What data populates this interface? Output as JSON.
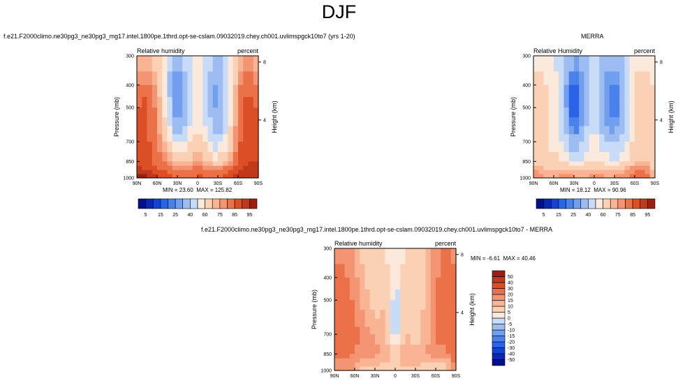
{
  "page": {
    "title": "DJF"
  },
  "levels": {
    "abs": [
      5,
      10,
      15,
      20,
      25,
      30,
      40,
      50,
      60,
      70,
      75,
      80,
      85,
      90,
      95
    ],
    "abs_labels": [
      "5",
      "15",
      "25",
      "40",
      "60",
      "75",
      "85",
      "95"
    ],
    "diff": [
      -50,
      -40,
      -30,
      -20,
      -15,
      -10,
      -5,
      0,
      5,
      10,
      15,
      20,
      30,
      40,
      50
    ]
  },
  "colors": {
    "abs_fill": [
      "#04108a",
      "#0b27b8",
      "#1441d6",
      "#2a62e8",
      "#4a82ec",
      "#719fee",
      "#9dbdf2",
      "#c9dcf7",
      "#fbe9dc",
      "#fbd1b6",
      "#f8b493",
      "#f39473",
      "#eb7149",
      "#dc4f26",
      "#c0391b",
      "#9c1d12"
    ],
    "diff_fill": [
      "#04108a",
      "#0b27b8",
      "#1441d6",
      "#2a62e8",
      "#4a82ec",
      "#719fee",
      "#9dbdf2",
      "#c9dcf7",
      "#fbe9dc",
      "#fbd1b6",
      "#f8b493",
      "#f39473",
      "#eb7149",
      "#dc4f26",
      "#c0391b",
      "#9c1d12"
    ]
  },
  "chart_data": [
    {
      "type": "heatmap",
      "title": "f.e21.F2000climo.ne30pg3_ne30pg3_mg17.intel.1800pe.1thrd.opt-se-cslam.09032019.chey.ch001.uvlimspgck10to7 (yrs 1-20)",
      "left_label": "Relative humidity",
      "right_label": "percent",
      "xlabel": "",
      "ylabel": "Pressure (mb)",
      "y2label": "Height (km)",
      "x_ticks": [
        "90N",
        "60N",
        "30N",
        "0",
        "30S",
        "60S",
        "90S"
      ],
      "y_ticks": [
        "300",
        "400",
        "500",
        "700",
        "850",
        "1000"
      ],
      "y2_ticks": [
        "8",
        "4"
      ],
      "x": [
        90,
        75,
        60,
        45,
        30,
        15,
        0,
        -15,
        -30,
        -45,
        -60,
        -75,
        -90
      ],
      "y": [
        300,
        400,
        500,
        600,
        700,
        850,
        925,
        1000
      ],
      "z": [
        [
          65,
          70,
          65,
          45,
          35,
          45,
          55,
          45,
          40,
          50,
          70,
          75,
          70
        ],
        [
          82,
          84,
          75,
          45,
          20,
          40,
          55,
          40,
          25,
          45,
          80,
          85,
          80
        ],
        [
          85,
          86,
          78,
          50,
          20,
          40,
          55,
          40,
          25,
          45,
          82,
          88,
          85
        ],
        [
          86,
          86,
          80,
          55,
          30,
          45,
          62,
          45,
          30,
          50,
          82,
          88,
          88
        ],
        [
          86,
          86,
          82,
          65,
          45,
          55,
          68,
          55,
          40,
          60,
          84,
          88,
          90
        ],
        [
          88,
          86,
          82,
          78,
          68,
          70,
          76,
          70,
          62,
          75,
          86,
          90,
          90
        ],
        [
          92,
          90,
          86,
          84,
          82,
          80,
          84,
          82,
          80,
          84,
          90,
          92,
          90
        ],
        [
          98,
          96,
          90,
          86,
          84,
          82,
          86,
          84,
          84,
          88,
          92,
          94,
          92
        ]
      ],
      "min_label": "MIN = 23.60",
      "max_label": "MAX = 125.82",
      "min": 23.6,
      "max": 125.82,
      "levels_key": "abs"
    },
    {
      "type": "heatmap",
      "title": "MERRA",
      "left_label": "Relative Humidity",
      "right_label": "percent",
      "xlabel": "",
      "ylabel": "Pressure (mb)",
      "y2label": "Height (km)",
      "x_ticks": [
        "90N",
        "60N",
        "30N",
        "0",
        "30S",
        "60S",
        "90S"
      ],
      "y_ticks": [
        "300",
        "400",
        "500",
        "700",
        "850",
        "1000"
      ],
      "y2_ticks": [
        "8",
        "4"
      ],
      "x": [
        90,
        75,
        60,
        45,
        30,
        15,
        0,
        -15,
        -30,
        -45,
        -60,
        -75,
        -90
      ],
      "y": [
        300,
        400,
        500,
        600,
        700,
        850,
        925,
        1000
      ],
      "z": [
        [
          55,
          55,
          52,
          40,
          32,
          38,
          50,
          38,
          35,
          40,
          55,
          58,
          58
        ],
        [
          62,
          62,
          58,
          35,
          15,
          30,
          48,
          30,
          20,
          35,
          62,
          62,
          60
        ],
        [
          62,
          62,
          58,
          35,
          12,
          30,
          48,
          28,
          20,
          35,
          62,
          62,
          60
        ],
        [
          62,
          62,
          58,
          38,
          18,
          35,
          50,
          32,
          25,
          38,
          62,
          62,
          60
        ],
        [
          62,
          62,
          58,
          48,
          30,
          42,
          55,
          42,
          35,
          48,
          62,
          62,
          60
        ],
        [
          65,
          64,
          62,
          60,
          48,
          55,
          62,
          55,
          50,
          60,
          68,
          72,
          62
        ],
        [
          75,
          72,
          70,
          72,
          70,
          70,
          72,
          70,
          70,
          74,
          80,
          82,
          68
        ],
        [
          80,
          76,
          74,
          78,
          76,
          74,
          78,
          76,
          76,
          80,
          84,
          84,
          70
        ]
      ],
      "min_label": "MIN = 18.12",
      "max_label": "MAX = 90.96",
      "min": 18.12,
      "max": 90.96,
      "levels_key": "abs"
    },
    {
      "type": "heatmap",
      "title": "f.e21.F2000climo.ne30pg3_ne30pg3_mg17.intel.1800pe.1thrd.opt-se-cslam.09032019.chey.ch001.uvlimspgck10to7 - MERRA",
      "left_label": "Relative humidity",
      "right_label": "percent",
      "xlabel": "",
      "ylabel": "Pressure (mb)",
      "y2label": "Height (km)",
      "x_ticks": [
        "90N",
        "60N",
        "30N",
        "0",
        "30S",
        "60S",
        "90S"
      ],
      "y_ticks": [
        "300",
        "400",
        "500",
        "700",
        "850",
        "1000"
      ],
      "y2_ticks": [
        "8",
        "4"
      ],
      "x": [
        90,
        75,
        60,
        45,
        30,
        15,
        0,
        -15,
        -30,
        -45,
        -60,
        -75,
        -90
      ],
      "y": [
        300,
        400,
        500,
        600,
        700,
        850,
        925,
        1000
      ],
      "z": [
        [
          14,
          17,
          14,
          6,
          4,
          6,
          1,
          6,
          6,
          8,
          18,
          22,
          14
        ],
        [
          22,
          22,
          18,
          9,
          7,
          8,
          -2,
          8,
          6,
          11,
          19,
          24,
          22
        ],
        [
          24,
          24,
          19,
          12,
          8,
          9,
          -3,
          8,
          5,
          11,
          20,
          26,
          25
        ],
        [
          24,
          24,
          21,
          15,
          10,
          11,
          -4,
          9,
          5,
          12,
          20,
          26,
          28
        ],
        [
          24,
          24,
          23,
          16,
          14,
          12,
          -4,
          10,
          6,
          12,
          22,
          26,
          30
        ],
        [
          23,
          22,
          20,
          18,
          16,
          14,
          6,
          14,
          12,
          15,
          18,
          18,
          28
        ],
        [
          17,
          18,
          16,
          12,
          12,
          10,
          8,
          12,
          12,
          10,
          10,
          10,
          22
        ],
        [
          18,
          20,
          16,
          4,
          6,
          8,
          8,
          8,
          8,
          8,
          8,
          10,
          22
        ]
      ],
      "min_label": "MIN = -6.61",
      "max_label": "MAX = 40.46",
      "min": -6.61,
      "max": 40.46,
      "levels_key": "diff"
    }
  ]
}
